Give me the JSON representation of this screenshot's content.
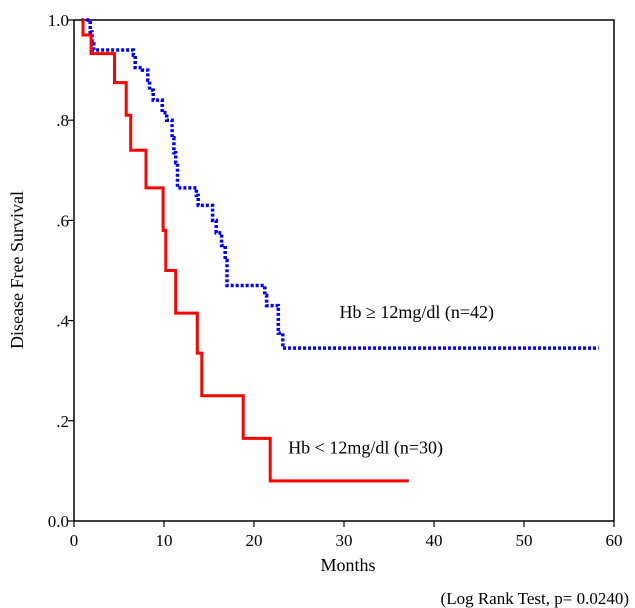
{
  "chart_data": {
    "type": "line",
    "title": "",
    "xlabel": "Months",
    "ylabel": "Disease Free Survival",
    "xlim": [
      0,
      60
    ],
    "ylim": [
      0,
      1.0
    ],
    "x_ticks": [
      0,
      10,
      20,
      30,
      40,
      50,
      60
    ],
    "x_tick_labels": [
      "0",
      "10",
      "20",
      "30",
      "40",
      "50",
      "60"
    ],
    "y_ticks": [
      0,
      0.2,
      0.4,
      0.6,
      0.8,
      1.0
    ],
    "y_tick_labels": [
      "0.0",
      ".2",
      ".4",
      ".6",
      ".8",
      "1.0"
    ],
    "grid": false,
    "footnote": "(Log Rank Test, p= 0.0240)",
    "series": [
      {
        "name": "Hb ≥ 12mg/dl (n=42)",
        "color": "#0000ff",
        "style": "dotted",
        "step_points": [
          [
            0.8,
            1.0
          ],
          [
            1.8,
            0.976
          ],
          [
            2.0,
            0.952
          ],
          [
            2.2,
            0.94
          ],
          [
            6.6,
            0.93
          ],
          [
            6.8,
            0.905
          ],
          [
            7.6,
            0.9
          ],
          [
            8.2,
            0.88
          ],
          [
            8.4,
            0.86
          ],
          [
            8.8,
            0.84
          ],
          [
            9.8,
            0.815
          ],
          [
            10.3,
            0.8
          ],
          [
            10.9,
            0.765
          ],
          [
            11.1,
            0.735
          ],
          [
            11.3,
            0.715
          ],
          [
            11.5,
            0.665
          ],
          [
            13.6,
            0.65
          ],
          [
            13.8,
            0.63
          ],
          [
            15.4,
            0.6
          ],
          [
            15.8,
            0.575
          ],
          [
            16.4,
            0.55
          ],
          [
            16.8,
            0.52
          ],
          [
            17.0,
            0.47
          ],
          [
            21.2,
            0.45
          ],
          [
            21.4,
            0.43
          ],
          [
            22.7,
            0.375
          ],
          [
            23.2,
            0.345
          ],
          [
            58.3,
            0.345
          ]
        ]
      },
      {
        "name": "Hb < 12mg/dl (n=30)",
        "color": "#ff0000",
        "style": "solid",
        "step_points": [
          [
            0.9,
            1.0
          ],
          [
            1.0,
            0.97
          ],
          [
            1.9,
            0.933
          ],
          [
            4.5,
            0.875
          ],
          [
            5.8,
            0.81
          ],
          [
            6.3,
            0.74
          ],
          [
            8.0,
            0.665
          ],
          [
            9.9,
            0.58
          ],
          [
            10.2,
            0.5
          ],
          [
            11.3,
            0.415
          ],
          [
            13.7,
            0.335
          ],
          [
            14.2,
            0.25
          ],
          [
            18.8,
            0.165
          ],
          [
            21.8,
            0.08
          ],
          [
            37.2,
            0.08
          ]
        ]
      }
    ],
    "annotations": [
      {
        "text": "Hb ≥ 12mg/dl (n=42)",
        "x": 29.5,
        "y": 0.405
      },
      {
        "text": "Hb < 12mg/dl (n=30)",
        "x": 23.8,
        "y": 0.135
      }
    ]
  }
}
